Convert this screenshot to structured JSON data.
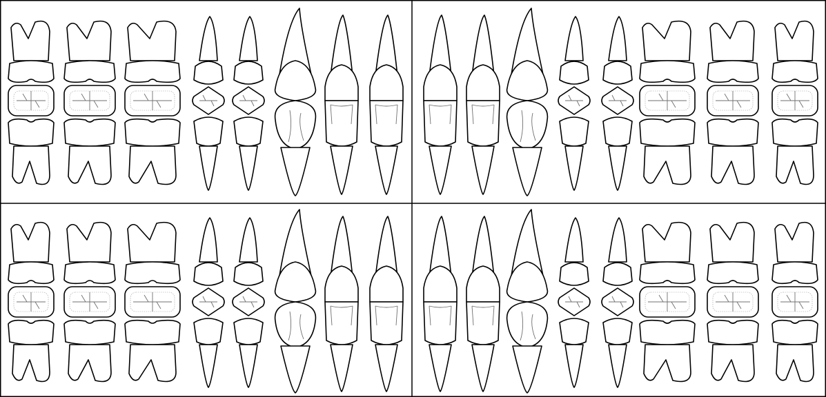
{
  "colors": {
    "line": "#000000",
    "fill": "#ffffff",
    "groove": "#6f6f6f"
  },
  "quadrants": [
    {
      "id": "upper-right",
      "row": "upper",
      "side": "left",
      "teeth": [
        "molar",
        "molar",
        "molar",
        "premolar",
        "premolar",
        "canine",
        "incisor",
        "incisor"
      ]
    },
    {
      "id": "upper-left",
      "row": "upper",
      "side": "right",
      "teeth": [
        "incisor",
        "incisor",
        "canine",
        "premolar",
        "premolar",
        "molar",
        "molar",
        "molar"
      ]
    },
    {
      "id": "lower-right",
      "row": "lower",
      "side": "left",
      "teeth": [
        "molar",
        "molar",
        "molar",
        "premolar",
        "premolar",
        "canine",
        "incisor",
        "incisor"
      ]
    },
    {
      "id": "lower-left",
      "row": "lower",
      "side": "right",
      "teeth": [
        "incisor",
        "incisor",
        "canine",
        "premolar",
        "premolar",
        "molar",
        "molar",
        "molar"
      ]
    }
  ]
}
